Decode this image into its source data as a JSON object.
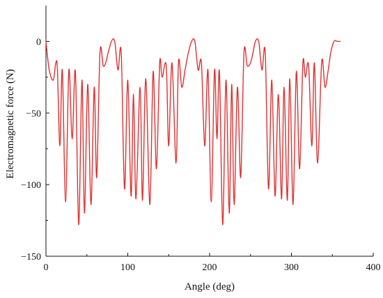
{
  "chart_data": {
    "type": "line",
    "title": "",
    "xlabel": "Angle (deg)",
    "ylabel": "Electromagnetic force (N)",
    "xlim": [
      0,
      400
    ],
    "ylim": [
      -150,
      25
    ],
    "xticks": [
      "0",
      "100",
      "200",
      "300",
      "400"
    ],
    "yticks": [
      "0",
      "−50",
      "−100",
      "−150"
    ],
    "grid": false,
    "legend": "none",
    "line_color": "#e03030",
    "series": [
      {
        "x": [
          0,
          4,
          9,
          12,
          14,
          17,
          20,
          24,
          28,
          32,
          36,
          40,
          44,
          47,
          51,
          55,
          59,
          62,
          66,
          70,
          73,
          76,
          80,
          84,
          88,
          92,
          96,
          100,
          104,
          107,
          110,
          115,
          118,
          122,
          127,
          131,
          135,
          139,
          142,
          147,
          150,
          154,
          159,
          162,
          166,
          170,
          174,
          178,
          182,
          186,
          190,
          194,
          198,
          202,
          206,
          209,
          212,
          216,
          220,
          224,
          227,
          230,
          234,
          238,
          242,
          246,
          250,
          253,
          256,
          260,
          264,
          268,
          272,
          276,
          280,
          284,
          288,
          291,
          295,
          298,
          302,
          306,
          310,
          314,
          317,
          321,
          325,
          328,
          332,
          337,
          341,
          345,
          348,
          352,
          356,
          360
        ],
        "y": [
          0,
          -20,
          -27,
          -15,
          -20,
          -73,
          -20,
          -112,
          -20,
          -68,
          -21,
          -128,
          -27,
          -120,
          -30,
          -114,
          -32,
          -95,
          -8,
          -17,
          -15,
          -8,
          0,
          0,
          -20,
          -8,
          -103,
          -27,
          -108,
          -37,
          -110,
          -32,
          -111,
          -26,
          -114,
          -21,
          -89,
          -15,
          -25,
          -17,
          -73,
          -15,
          -85,
          -14,
          -32,
          -20,
          -8,
          0,
          0,
          -20,
          -15,
          -73,
          -20,
          -112,
          -20,
          -68,
          -21,
          -128,
          -27,
          -120,
          -30,
          -114,
          -32,
          -95,
          -8,
          -17,
          -15,
          -8,
          0,
          0,
          -20,
          -8,
          -103,
          -27,
          -108,
          -37,
          -110,
          -32,
          -111,
          -26,
          -114,
          -21,
          -89,
          -15,
          -25,
          -17,
          -73,
          -15,
          -85,
          -14,
          -32,
          -20,
          -8,
          0,
          0,
          0
        ]
      }
    ]
  }
}
